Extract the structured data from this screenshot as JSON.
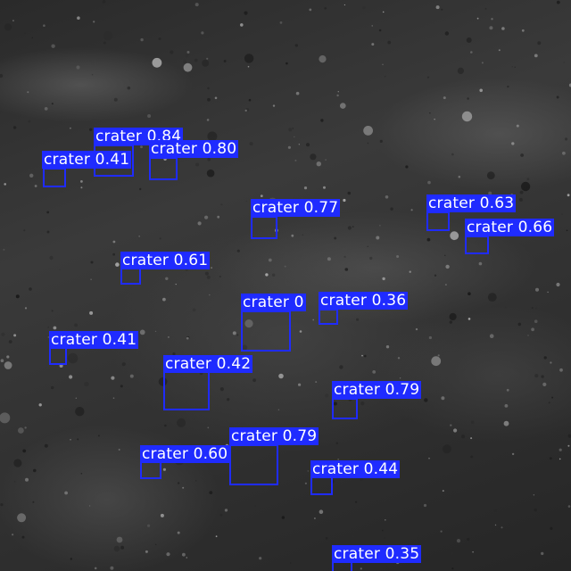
{
  "image": {
    "description_colors": {
      "box": "#1f2bff",
      "label_text": "#ffffff"
    }
  },
  "detections": [
    {
      "id": "d1",
      "label": "crater 0.84"
    },
    {
      "id": "d2",
      "label": "crater 0.41"
    },
    {
      "id": "d3",
      "label": "crater 0.80"
    },
    {
      "id": "d4",
      "label": "crater 0.77"
    },
    {
      "id": "d5",
      "label": "crater 0.63"
    },
    {
      "id": "d6",
      "label": "crater 0.66"
    },
    {
      "id": "d7",
      "label": "crater 0.61"
    },
    {
      "id": "d8",
      "label": "crater 0"
    },
    {
      "id": "d9",
      "label": "crater 0.36"
    },
    {
      "id": "d10",
      "label": "crater 0.41"
    },
    {
      "id": "d11",
      "label": "crater 0.42"
    },
    {
      "id": "d12",
      "label": "crater 0.79"
    },
    {
      "id": "d13",
      "label": "crater 0.79"
    },
    {
      "id": "d14",
      "label": "crater 0.60"
    },
    {
      "id": "d15",
      "label": "crater 0.44"
    },
    {
      "id": "d16",
      "label": "crater 0.35"
    }
  ]
}
